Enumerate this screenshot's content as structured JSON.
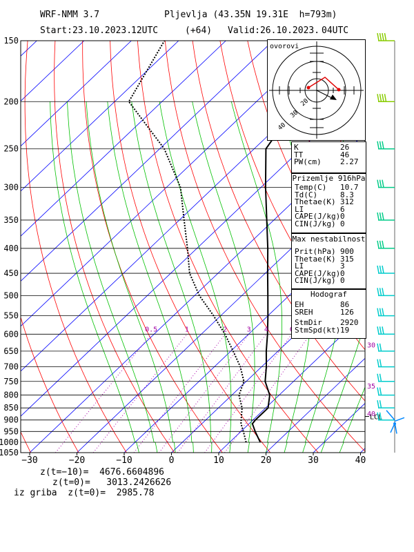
{
  "header": {
    "model": "WRF-NMM 3.7",
    "location": "Pljevlja (43.35N 19.31E  h=793m)",
    "start": "Start:23.10.2023.",
    "start_time": "12UTC",
    "lead": "(+64)",
    "valid": "Valid:26.10.2023.",
    "valid_time": "04UTC"
  },
  "chart_data": {
    "type": "line",
    "title": "",
    "xlabel": "",
    "ylabel": "",
    "x_axis": {
      "ticks": [
        "−30",
        "−20",
        "−10",
        "0",
        "10",
        "20",
        "30",
        "40"
      ],
      "values": [
        -30,
        -20,
        -10,
        0,
        10,
        20,
        30,
        40
      ],
      "range": [
        -30,
        42
      ]
    },
    "y_axis": {
      "ticks": [
        150,
        200,
        250,
        300,
        350,
        400,
        450,
        500,
        550,
        600,
        650,
        700,
        750,
        800,
        850,
        900,
        950,
        1000,
        1050
      ],
      "range": [
        150,
        1050
      ],
      "scale": "log-pressure"
    },
    "skew": "skew-T",
    "series": [
      {
        "kind": "temperature",
        "points": [
          [
            1000,
            16.5
          ],
          [
            950,
            13.0
          ],
          [
            916,
            10.7
          ],
          [
            900,
            10.5
          ],
          [
            850,
            10.5
          ],
          [
            800,
            8.0
          ],
          [
            750,
            4.0
          ],
          [
            700,
            1.0
          ],
          [
            650,
            -2.5
          ],
          [
            600,
            -6.0
          ],
          [
            550,
            -10.0
          ],
          [
            500,
            -14.5
          ],
          [
            450,
            -19.5
          ],
          [
            400,
            -25.0
          ],
          [
            350,
            -31.5
          ],
          [
            300,
            -39.0
          ],
          [
            250,
            -47.5
          ],
          [
            200,
            -51.0
          ],
          [
            150,
            -51.0
          ]
        ]
      },
      {
        "kind": "dewpoint",
        "points": [
          [
            1000,
            13.5
          ],
          [
            950,
            10.5
          ],
          [
            916,
            8.3
          ],
          [
            900,
            7.5
          ],
          [
            850,
            5.0
          ],
          [
            800,
            1.5
          ],
          [
            750,
            -0.5
          ],
          [
            700,
            -4.5
          ],
          [
            650,
            -9.5
          ],
          [
            600,
            -15.0
          ],
          [
            550,
            -21.5
          ],
          [
            500,
            -29.0
          ],
          [
            450,
            -36.0
          ],
          [
            400,
            -42.0
          ],
          [
            350,
            -49.0
          ],
          [
            300,
            -57.0
          ],
          [
            250,
            -69.0
          ],
          [
            200,
            -87.0
          ],
          [
            150,
            -93.0
          ]
        ]
      }
    ],
    "mixing_ratio_labels": [
      "0.5",
      "1",
      "2",
      "3",
      "4",
      "6",
      "8"
    ],
    "mixing_ratio_values": [
      0.5,
      1,
      2,
      3,
      4,
      6,
      8
    ],
    "pressure_labels_right": [
      {
        "p": 630,
        "label": "30"
      },
      {
        "p": 765,
        "label": "35"
      },
      {
        "p": 872,
        "label": "40"
      }
    ],
    "lcl_label": "LCL",
    "lcl_p": 885,
    "line_colors": {
      "temperature": "#000000",
      "dewpoint": "#000000",
      "isotherm": "#0000ff",
      "dry_adiabat": "#ff0000",
      "moist_adiabat": "#00c000",
      "mixing_ratio": "#aa00aa"
    }
  },
  "hodograph": {
    "label": "ovorovi",
    "ring_labels": [
      "20",
      "30",
      "40"
    ]
  },
  "indices": {
    "rows": [
      {
        "k": "K",
        "v": "26"
      },
      {
        "k": "TT",
        "v": "46"
      },
      {
        "k": "PW(cm)",
        "v": "2.27"
      }
    ]
  },
  "surface": {
    "title": "Prizemlje 916hPa",
    "rows": [
      {
        "k": "Temp(C)",
        "v": "10.7"
      },
      {
        "k": "Td(C)",
        "v": "8.3"
      },
      {
        "k": "Thetae(K)",
        "v": "312"
      },
      {
        "k": "LI",
        "v": "6"
      },
      {
        "k": "CAPE(J/kg)",
        "v": "0"
      },
      {
        "k": "CIN(J/kg)",
        "v": "0"
      }
    ]
  },
  "max_instability": {
    "title": "Max nestabilnost",
    "rows": [
      {
        "k": "Prit(hPa)",
        "v": "900"
      },
      {
        "k": "Thetae(K)",
        "v": "315"
      },
      {
        "k": "LI",
        "v": "3"
      },
      {
        "k": "CAPE(J/kg)",
        "v": "0"
      },
      {
        "k": "CIN(J/kg)",
        "v": "0"
      }
    ]
  },
  "hodograf": {
    "title": "Hodograf",
    "rows": [
      {
        "k": "EH",
        "v": "86"
      },
      {
        "k": "SREH",
        "v": "126"
      },
      {
        "k": "StmDir",
        "v": "2920"
      },
      {
        "k": "StmSpd(kt)",
        "v": "19"
      }
    ]
  },
  "footer": {
    "line1": "z(t=−10)=  4676.6604896",
    "line2": "z(t=0)=   3013.2426626",
    "line3": "iz griba  z(t=0)=  2985.78"
  }
}
